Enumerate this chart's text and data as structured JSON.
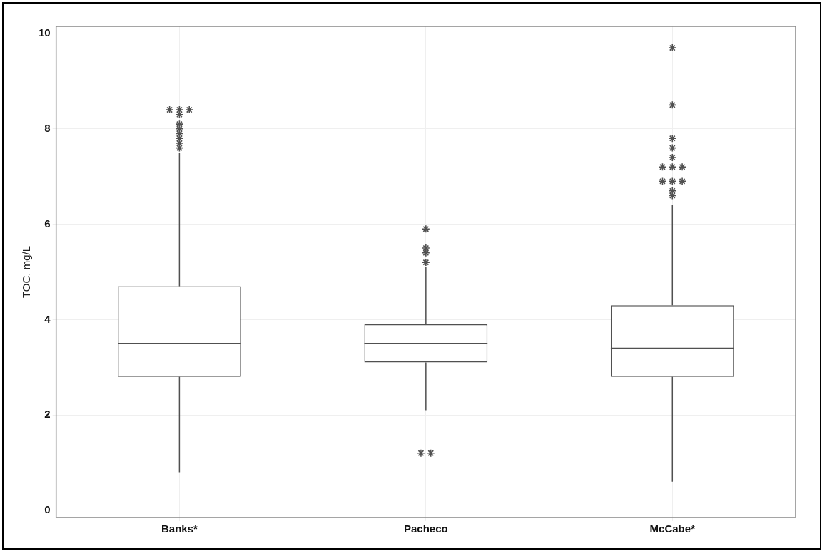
{
  "chart_data": {
    "type": "box",
    "ylabel": "TOC, mg/L",
    "categories": [
      "Banks*",
      "Pacheco",
      "McCabe*"
    ],
    "boxes": [
      {
        "low": 0.8,
        "q1": 2.8,
        "median": 3.5,
        "q3": 4.7,
        "high": 7.5,
        "outliers": [
          7.6,
          7.7,
          7.8,
          7.9,
          8.0,
          8.1,
          8.3,
          8.4,
          8.4,
          8.4
        ]
      },
      {
        "low": 2.1,
        "q1": 3.1,
        "median": 3.5,
        "q3": 3.9,
        "high": 5.1,
        "outliers": [
          1.2,
          1.2,
          5.2,
          5.4,
          5.5,
          5.9
        ]
      },
      {
        "low": 0.6,
        "q1": 2.8,
        "median": 3.4,
        "q3": 4.3,
        "high": 6.4,
        "outliers": [
          6.6,
          6.7,
          6.9,
          6.9,
          6.9,
          7.2,
          7.2,
          7.2,
          7.4,
          7.6,
          7.8,
          8.5,
          9.7
        ]
      }
    ],
    "color": "#505050",
    "marker": "star",
    "ylim": [
      -0.15,
      10.15
    ],
    "yticks": [
      0,
      2,
      4,
      6,
      8,
      10
    ],
    "grid": true,
    "legend": false
  }
}
